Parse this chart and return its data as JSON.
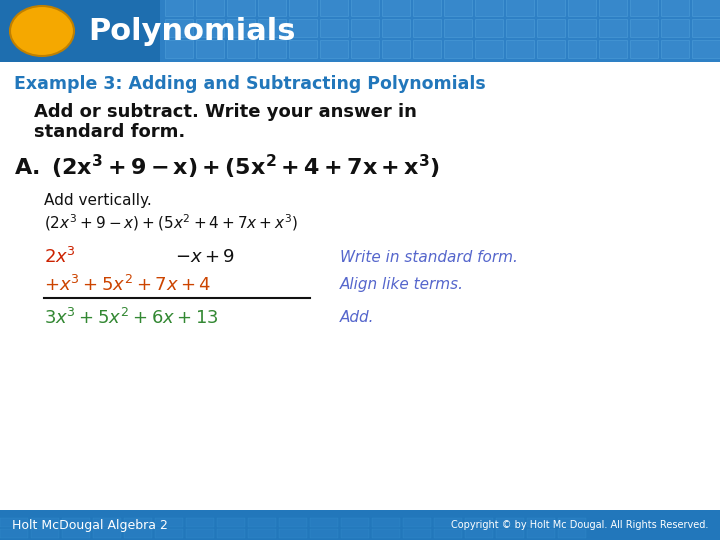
{
  "bg_color": "#ffffff",
  "header_bg_left": "#1a6faf",
  "header_bg_right": "#3a8fd0",
  "header_text": "Polynomials",
  "header_text_color": "#ffffff",
  "oval_color": "#f5a800",
  "example_label": "Example 3: Adding and Subtracting Polynomials",
  "example_color": "#2277bb",
  "instr1": "Add or subtract. Write your answer in",
  "instr2": "standard form.",
  "black": "#111111",
  "red": "#cc2200",
  "orange_red": "#cc4400",
  "green": "#338833",
  "blue_italic": "#5566cc",
  "footer_bg": "#2277bb",
  "footer_text": "Holt McDougal Algebra 2",
  "copyright_text": "Copyright © by Holt Mc Dougal. All Rights Reserved.",
  "footer_text_color": "#ffffff"
}
